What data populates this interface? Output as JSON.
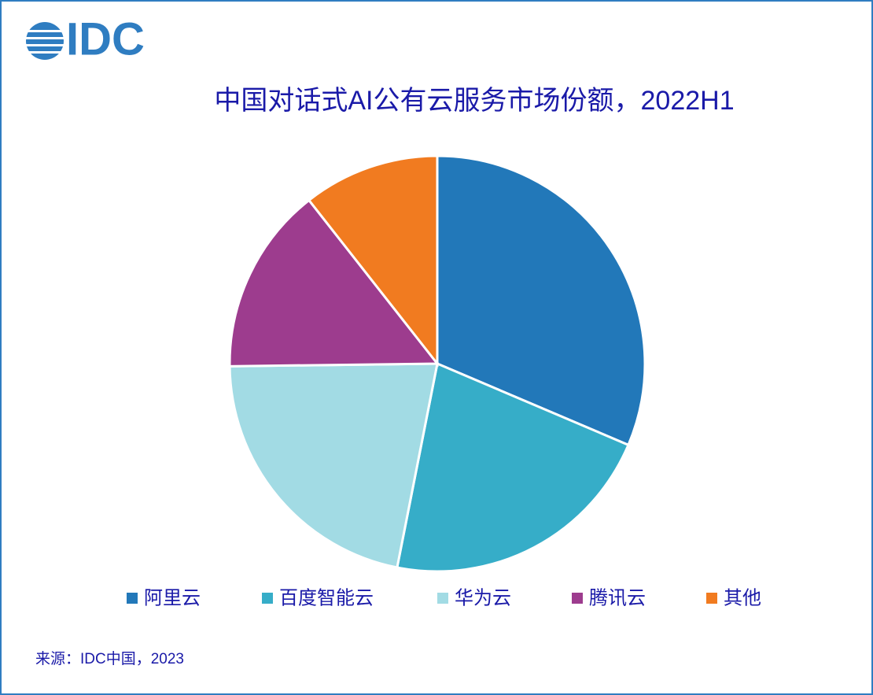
{
  "logo": "IDC",
  "chart_data": {
    "type": "pie",
    "title": "中国对话式AI公有云服务市场份额，2022H1",
    "categories": [
      "阿里云",
      "百度智能云",
      "华为云",
      "腾讯云",
      "其他"
    ],
    "values": [
      31.4,
      21.7,
      21.7,
      14.6,
      10.6
    ],
    "colors": [
      "#2278b9",
      "#36adc8",
      "#a2dbe4",
      "#9d3c8e",
      "#f17b20"
    ],
    "legend": "bottom",
    "source": "来源：IDC中国，2023"
  }
}
